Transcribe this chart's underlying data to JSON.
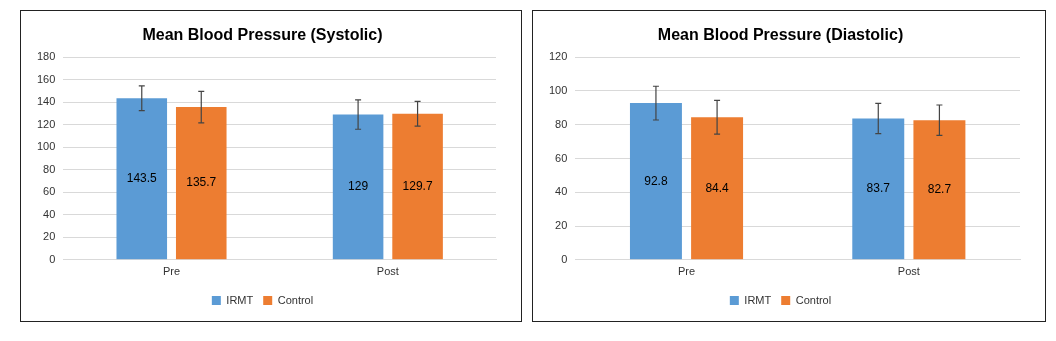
{
  "chart_data": [
    {
      "type": "bar",
      "title": "Mean Blood Pressure (Systolic)",
      "categories": [
        "Pre",
        "Post"
      ],
      "series": [
        {
          "name": "IRMT",
          "color": "#5b9bd5",
          "values": [
            143.5,
            129
          ],
          "errors": [
            11,
            13
          ]
        },
        {
          "name": "Control",
          "color": "#ed7d31",
          "values": [
            135.7,
            129.7
          ],
          "errors": [
            14,
            11
          ]
        }
      ],
      "ylim": [
        0,
        180
      ],
      "yticks": [
        0,
        20,
        40,
        60,
        80,
        100,
        120,
        140,
        160,
        180
      ],
      "grid": "y",
      "legend": "bottom",
      "data_labels": true
    },
    {
      "type": "bar",
      "title": "Mean Blood Pressure (Diastolic)",
      "categories": [
        "Pre",
        "Post"
      ],
      "series": [
        {
          "name": "IRMT",
          "color": "#5b9bd5",
          "values": [
            92.8,
            83.7
          ],
          "errors": [
            10,
            9
          ]
        },
        {
          "name": "Control",
          "color": "#ed7d31",
          "values": [
            84.4,
            82.7
          ],
          "errors": [
            10,
            9
          ]
        }
      ],
      "ylim": [
        0,
        120
      ],
      "yticks": [
        0,
        20,
        40,
        60,
        80,
        100,
        120
      ],
      "grid": "y",
      "legend": "bottom",
      "data_labels": true
    }
  ]
}
